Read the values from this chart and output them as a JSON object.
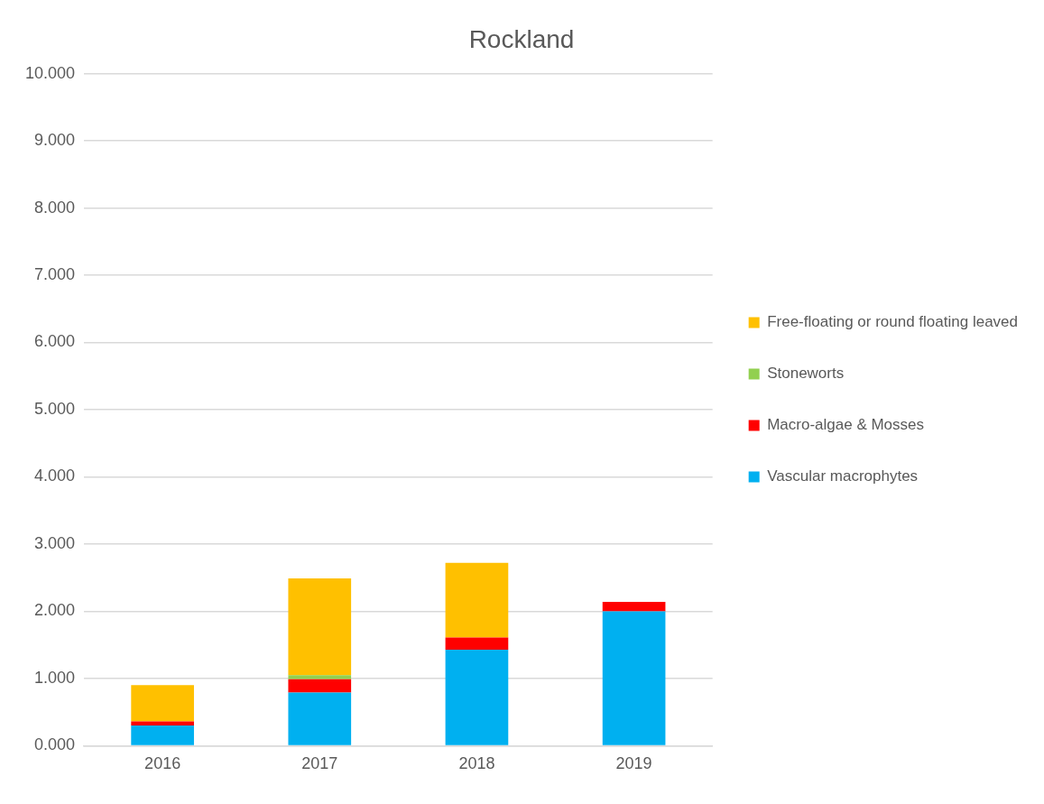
{
  "chart_data": {
    "type": "bar",
    "title": "Rockland",
    "categories": [
      "2016",
      "2017",
      "2018",
      "2019"
    ],
    "stacked": true,
    "series": [
      {
        "name": "Vascular macrophytes",
        "color": "#00b0f0",
        "values": [
          0.3,
          0.79,
          1.43,
          2.0
        ]
      },
      {
        "name": "Macro-algae & Mosses",
        "color": "#ff0000",
        "values": [
          0.06,
          0.2,
          0.18,
          0.14
        ]
      },
      {
        "name": "Stoneworts",
        "color": "#92d050",
        "values": [
          0,
          0.06,
          0,
          0
        ]
      },
      {
        "name": "Free-floating or round floating leaved",
        "color": "#ffc000",
        "values": [
          0.54,
          1.44,
          1.11,
          0
        ]
      }
    ],
    "ylim": [
      0,
      10
    ],
    "yticks": [
      {
        "value": 0,
        "label": "0.000"
      },
      {
        "value": 1,
        "label": "1.000"
      },
      {
        "value": 2,
        "label": "2.000"
      },
      {
        "value": 3,
        "label": "3.000"
      },
      {
        "value": 4,
        "label": "4.000"
      },
      {
        "value": 5,
        "label": "5.000"
      },
      {
        "value": 6,
        "label": "6.000"
      },
      {
        "value": 7,
        "label": "7.000"
      },
      {
        "value": 8,
        "label": "8.000"
      },
      {
        "value": 9,
        "label": "9.000"
      },
      {
        "value": 10,
        "label": "10.000"
      }
    ],
    "grid": "y",
    "legend": "right"
  }
}
